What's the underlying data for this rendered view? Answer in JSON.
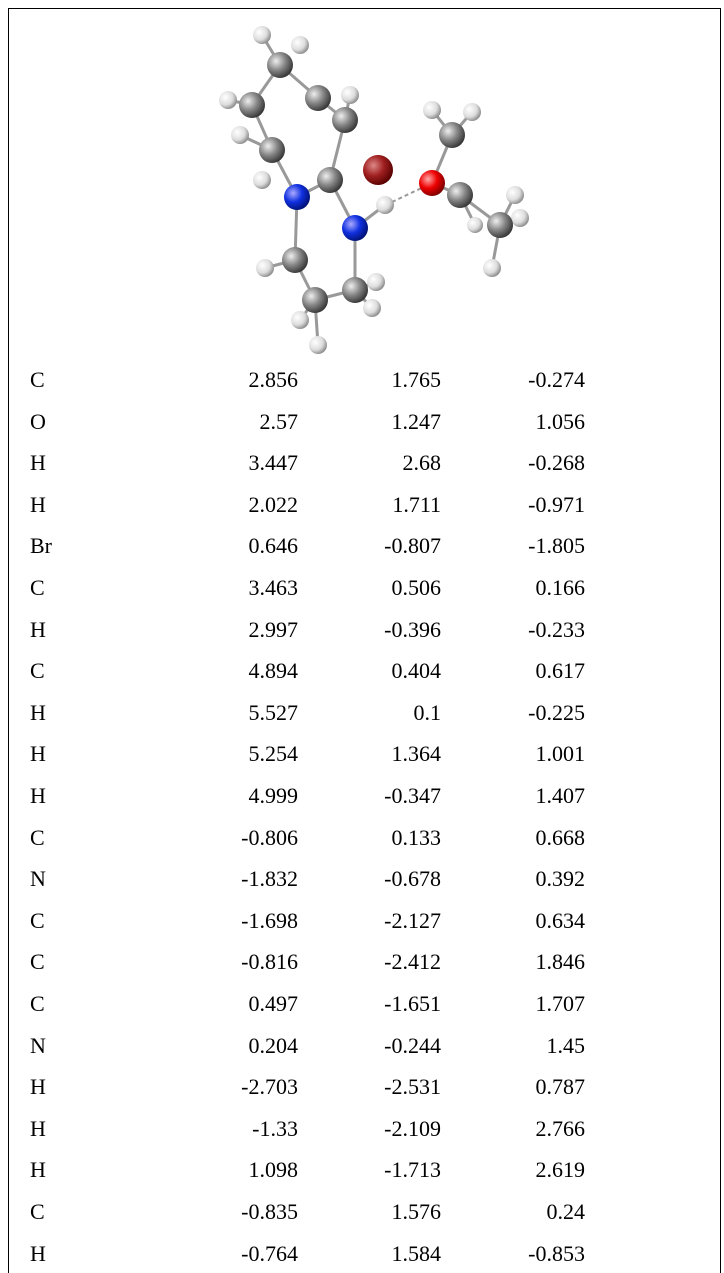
{
  "table": {
    "rows": [
      [
        "C",
        "2.856",
        "1.765",
        "-0.274"
      ],
      [
        "O",
        "2.57",
        "1.247",
        "1.056"
      ],
      [
        "H",
        "3.447",
        "2.68",
        "-0.268"
      ],
      [
        "H",
        "2.022",
        "1.711",
        "-0.971"
      ],
      [
        "Br",
        "0.646",
        "-0.807",
        "-1.805"
      ],
      [
        "C",
        "3.463",
        "0.506",
        "0.166"
      ],
      [
        "H",
        "2.997",
        "-0.396",
        "-0.233"
      ],
      [
        "C",
        "4.894",
        "0.404",
        "0.617"
      ],
      [
        "H",
        "5.527",
        "0.1",
        "-0.225"
      ],
      [
        "H",
        "5.254",
        "1.364",
        "1.001"
      ],
      [
        "H",
        "4.999",
        "-0.347",
        "1.407"
      ],
      [
        "C",
        "-0.806",
        "0.133",
        "0.668"
      ],
      [
        "N",
        "-1.832",
        "-0.678",
        "0.392"
      ],
      [
        "C",
        "-1.698",
        "-2.127",
        "0.634"
      ],
      [
        "C",
        "-0.816",
        "-2.412",
        "1.846"
      ],
      [
        "C",
        "0.497",
        "-1.651",
        "1.707"
      ],
      [
        "N",
        "0.204",
        "-0.244",
        "1.45"
      ],
      [
        "H",
        "-2.703",
        "-2.531",
        "0.787"
      ],
      [
        "H",
        "-1.33",
        "-2.109",
        "2.766"
      ],
      [
        "H",
        "1.098",
        "-1.713",
        "2.619"
      ],
      [
        "C",
        "-0.835",
        "1.576",
        "0.24"
      ],
      [
        "H",
        "-0.764",
        "1.584",
        "-0.853"
      ]
    ]
  }
}
